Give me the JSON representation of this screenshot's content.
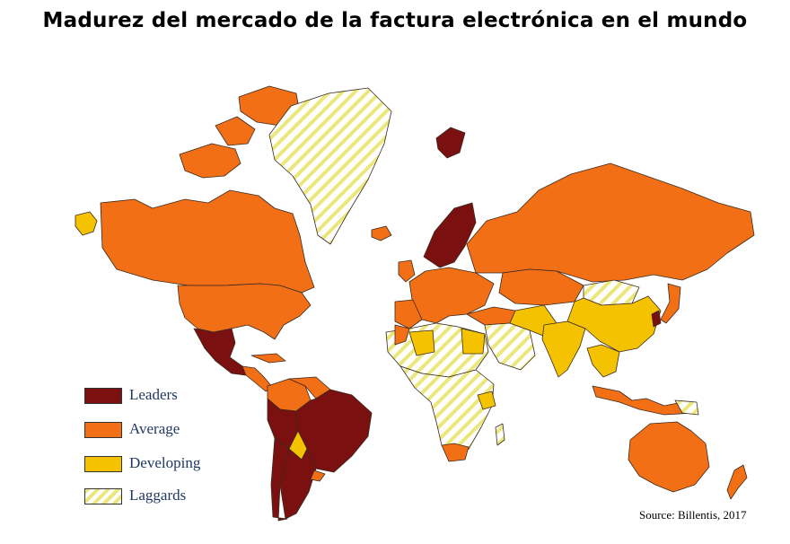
{
  "title": "Madurez del mercado de la factura electrónica en el mundo",
  "legend": {
    "items": [
      {
        "key": "leaders",
        "label": "Leaders",
        "color": "#7a1010"
      },
      {
        "key": "average",
        "label": "Average",
        "color": "#f26f16"
      },
      {
        "key": "developing",
        "label": "Developing",
        "color": "#f5c200"
      },
      {
        "key": "laggards",
        "label": "Laggards",
        "color": "#f2ef9a"
      }
    ]
  },
  "source": "Source: Billentis, 2017",
  "colors": {
    "leaders": "#7a1010",
    "average": "#f26f16",
    "developing": "#f5c200",
    "laggards_stripe": "#ece77a",
    "border": "#3a2a20"
  }
}
